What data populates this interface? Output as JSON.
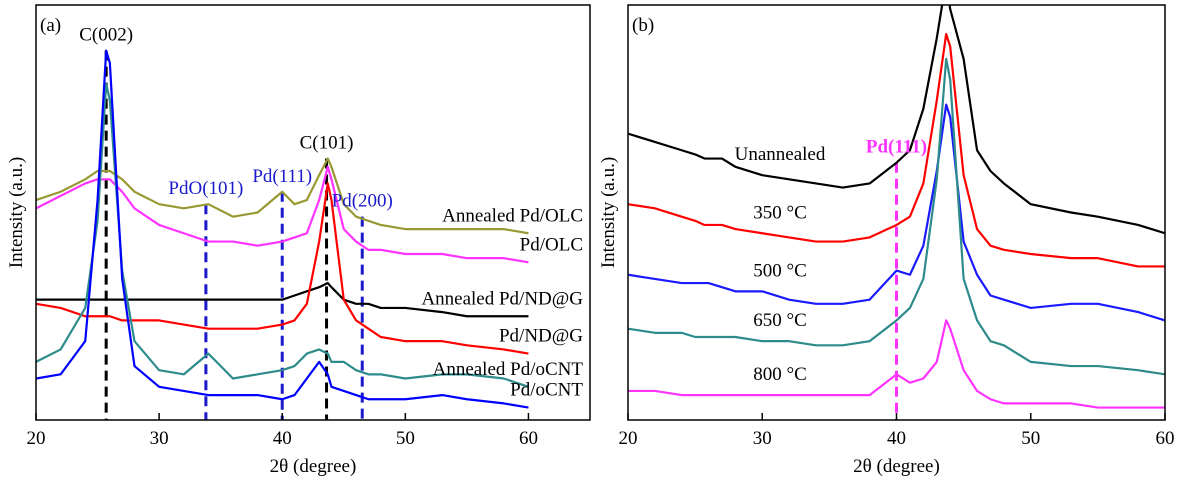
{
  "chart_data": [
    {
      "type": "line",
      "panel_label": "(a)",
      "x_label": "2θ (degree)",
      "y_label": "Intensity (a.u.)",
      "x": [
        20,
        22,
        24,
        25,
        25.7,
        26,
        27,
        28,
        30,
        32,
        34,
        36,
        38,
        40,
        41,
        42,
        43,
        43.7,
        44,
        45,
        46,
        47,
        48,
        50,
        53,
        55,
        58,
        60
      ],
      "xlim": [
        20,
        65
      ],
      "xticks": [
        20,
        30,
        40,
        50,
        60
      ],
      "ylim": [
        0,
        100
      ],
      "series": [
        {
          "name": "Annealed Pd/OLC",
          "color": "#999933",
          "values": [
            53,
            55,
            58,
            60,
            60,
            60,
            58,
            55,
            52,
            51,
            52,
            49,
            50,
            55,
            52,
            53,
            59,
            63,
            61,
            52,
            49,
            48,
            47,
            46,
            46,
            46,
            46,
            45
          ]
        },
        {
          "name": "Pd/OLC",
          "color": "#ff33ff",
          "values": [
            51,
            54,
            57,
            58,
            58,
            58,
            55,
            51,
            47,
            45,
            43,
            43,
            42,
            43,
            44,
            45,
            53,
            61,
            58,
            46,
            43,
            41,
            41,
            40,
            40,
            39,
            39,
            38
          ]
        },
        {
          "name": "Annealed Pd/ND@G",
          "color": "#000000",
          "values": [
            29,
            29,
            29,
            29,
            29,
            29,
            29,
            29,
            29,
            29,
            29,
            29,
            29,
            29,
            30,
            31,
            32,
            33,
            32,
            29,
            28,
            28,
            27,
            27,
            26,
            25,
            25,
            25
          ]
        },
        {
          "name": "Pd/ND@G",
          "color": "#ff0000",
          "values": [
            28,
            27,
            25,
            25,
            25,
            25,
            24,
            24,
            24,
            23,
            22,
            22,
            22,
            23,
            24,
            28,
            43,
            57,
            53,
            29,
            24,
            22,
            20,
            19,
            19,
            18,
            17,
            16
          ]
        },
        {
          "name": "Annealed Pd/oCNT",
          "color": "#2e8b8b",
          "values": [
            14,
            17,
            27,
            48,
            81,
            77,
            36,
            19,
            12,
            11,
            16,
            10,
            11,
            12,
            13,
            16,
            17,
            16,
            14,
            14,
            12,
            11,
            11,
            10,
            11,
            11,
            10,
            8
          ]
        },
        {
          "name": "Pd/oCNT",
          "color": "#0000ff",
          "values": [
            10,
            11,
            19,
            53,
            89,
            86,
            34,
            13,
            8,
            7,
            6,
            6,
            6,
            5,
            6,
            10,
            14,
            11,
            8,
            7,
            6,
            5,
            5,
            5,
            6,
            5,
            4,
            3
          ]
        }
      ],
      "reference_lines": [
        {
          "x": 25.7,
          "label": "C(002)",
          "color": "#000000"
        },
        {
          "x": 33.8,
          "label": "PdO(101)",
          "color": "#1a1acc"
        },
        {
          "x": 40.0,
          "label": "Pd(111)",
          "color": "#1a1acc"
        },
        {
          "x": 43.6,
          "label": "C(101)",
          "color": "#000000"
        },
        {
          "x": 46.5,
          "label": "Pd(200)",
          "color": "#1a1acc"
        }
      ]
    },
    {
      "type": "line",
      "panel_label": "(b)",
      "x_label": "2θ (degree)",
      "y_label": "Intensity (a.u.)",
      "x": [
        20,
        22,
        24,
        25,
        25.7,
        26,
        27,
        28,
        30,
        32,
        34,
        36,
        38,
        40,
        41,
        42,
        43,
        43.7,
        44,
        45,
        46,
        47,
        48,
        50,
        53,
        55,
        58,
        60
      ],
      "xlim": [
        20,
        60
      ],
      "xticks": [
        20,
        30,
        40,
        50,
        60
      ],
      "ylim": [
        0,
        100
      ],
      "series": [
        {
          "name": "Unannealed",
          "color": "#000000",
          "values": [
            69,
            67,
            65,
            64,
            63,
            63,
            63,
            61,
            59,
            58,
            57,
            56,
            57,
            62,
            65,
            75,
            92,
            106,
            99,
            87,
            65,
            60,
            57,
            52,
            50,
            49,
            47,
            45
          ]
        },
        {
          "name": "350 °C",
          "color": "#ff0000",
          "values": [
            52,
            51,
            49,
            48,
            47,
            47,
            47,
            46,
            45,
            44,
            43,
            43,
            44,
            47,
            49,
            57,
            77,
            93,
            90,
            59,
            46,
            42,
            41,
            40,
            39,
            39,
            37,
            37
          ]
        },
        {
          "name": "500 °C",
          "color": "#1a1aff",
          "values": [
            35,
            34,
            33,
            33,
            33,
            33,
            32,
            31,
            31,
            29,
            28,
            28,
            29,
            36,
            35,
            42,
            60,
            76,
            73,
            43,
            35,
            30,
            29,
            27,
            28,
            28,
            26,
            24
          ]
        },
        {
          "name": "650 °C",
          "color": "#2e8b8b",
          "values": [
            22,
            21,
            21,
            20,
            20,
            20,
            20,
            20,
            19,
            19,
            18,
            18,
            19,
            24,
            27,
            34,
            58,
            87,
            82,
            34,
            24,
            19,
            18,
            14,
            13,
            13,
            12,
            11
          ]
        },
        {
          "name": "800 °C",
          "color": "#ff33ff",
          "values": [
            7,
            7,
            6,
            6,
            6,
            6,
            6,
            6,
            6,
            6,
            6,
            6,
            6,
            11,
            9,
            10,
            14,
            24,
            22,
            12,
            7,
            5,
            4,
            4,
            4,
            3,
            3,
            3
          ]
        }
      ],
      "reference_lines": [
        {
          "x": 40.0,
          "label": "Pd(111)",
          "color": "#ff33ff"
        }
      ]
    }
  ]
}
